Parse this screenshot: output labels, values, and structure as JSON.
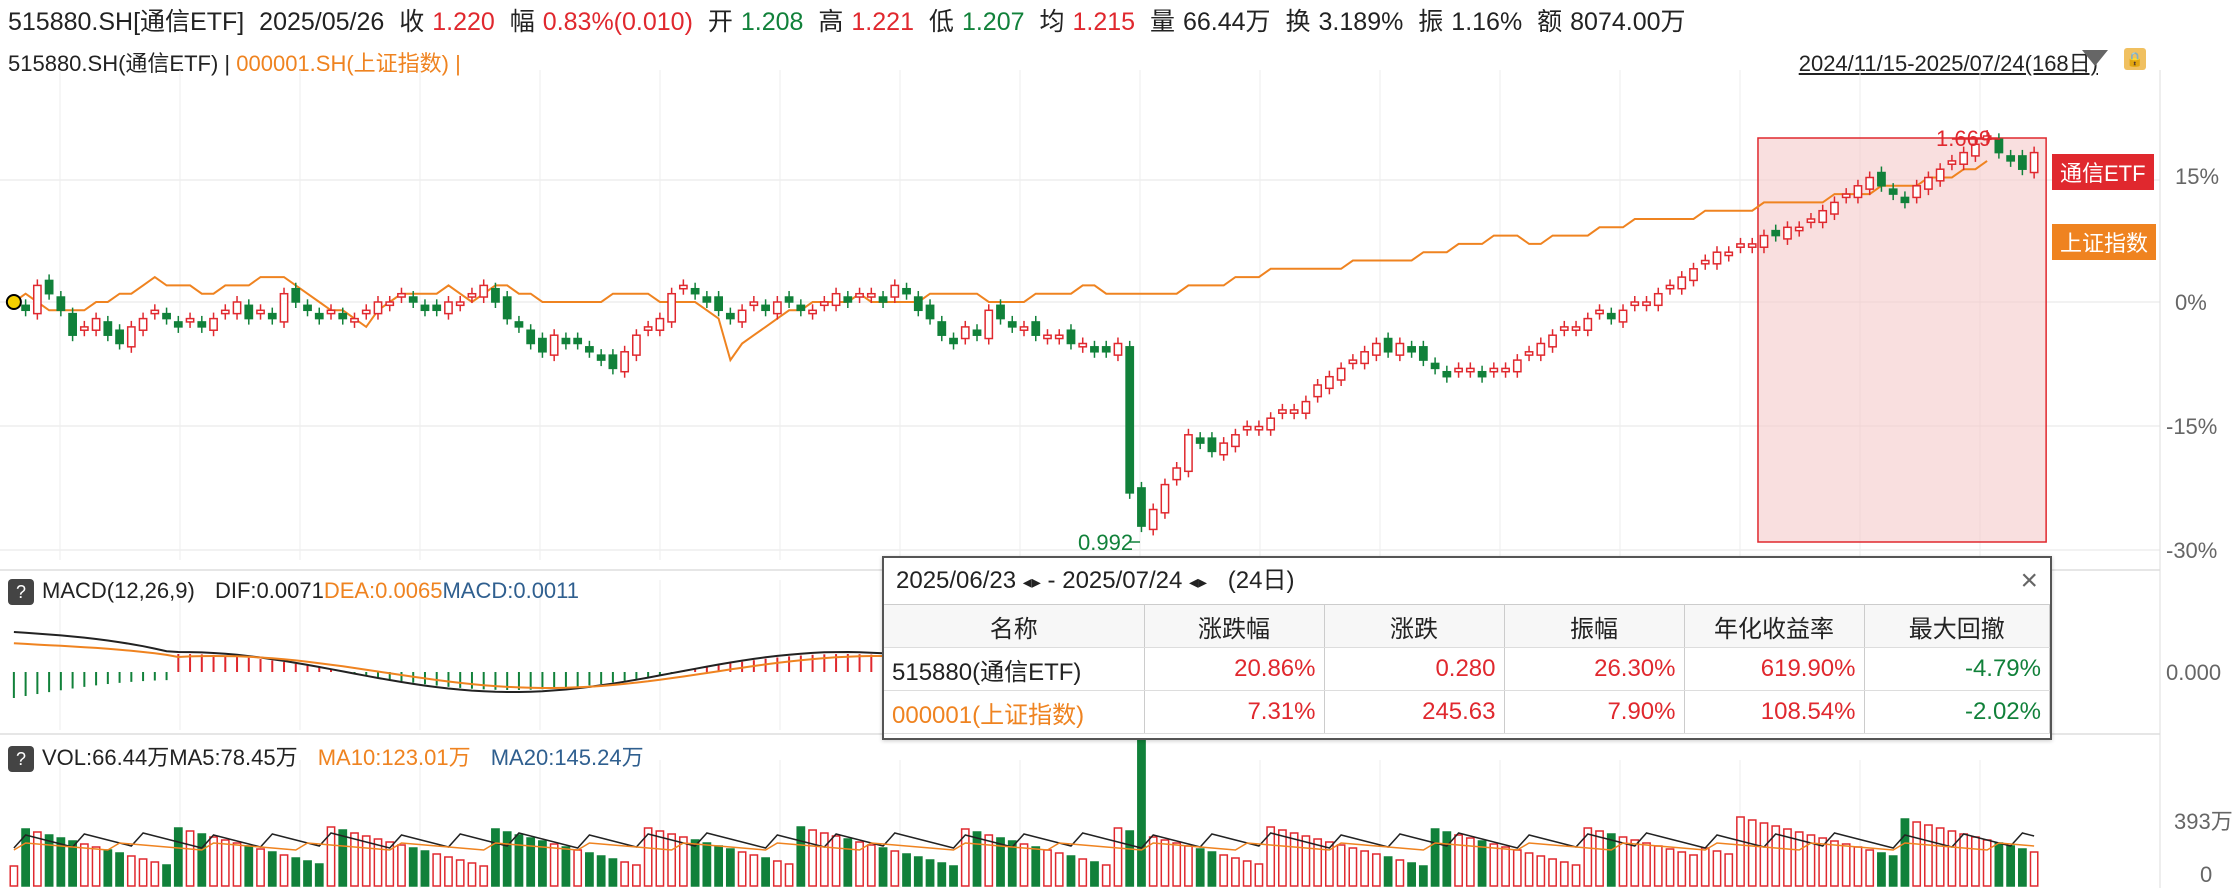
{
  "quote": {
    "symbol": "515880.SH[通信ETF]",
    "date": "2025/05/26",
    "close_label": "收",
    "close": "1.220",
    "chg_label": "幅",
    "chg": "0.83%(0.010)",
    "open_label": "开",
    "open": "1.208",
    "high_label": "高",
    "high": "1.221",
    "low_label": "低",
    "low": "1.207",
    "avg_label": "均",
    "avg": "1.215",
    "vol_label": "量",
    "vol": "66.44万",
    "turn_label": "换",
    "turn": "3.189%",
    "amp_label": "振",
    "amp": "1.16%",
    "amt_label": "额",
    "amt": "8074.00万"
  },
  "legend": {
    "main": "515880.SH(通信ETF)",
    "sep": " | ",
    "compare": "000001.SH(上证指数)",
    "sep2": " |"
  },
  "range_label": "2024/11/15-2025/07/24(168日)",
  "main_axis": [
    "15%",
    "0%",
    "-15%",
    "-30%"
  ],
  "tags": {
    "etf": "通信ETF",
    "index": "上证指数"
  },
  "annotations": {
    "high": "1.669",
    "low": "0.992"
  },
  "macd": {
    "title": "MACD(12,26,9)",
    "dif": "DIF:0.0071",
    "dea": "DEA:0.0065",
    "macd": "MACD:0.0011",
    "axis": "0.000"
  },
  "vol": {
    "title": "VOL:66.44万",
    "ma5": "MA5:78.45万",
    "ma10": "MA10:123.01万",
    "ma20": "MA20:145.24万",
    "axis_top": "393万",
    "axis_zero": "0"
  },
  "compare_panel": {
    "start": "2025/06/23",
    "dash": "-",
    "end": "2025/07/24",
    "days": "(24日)",
    "headers": [
      "名称",
      "涨跌幅",
      "涨跌",
      "振幅",
      "年化收益率",
      "最大回撤"
    ],
    "rows": [
      {
        "name": "515880(通信ETF)",
        "cells": [
          "20.86%",
          "0.280",
          "26.30%",
          "619.90%",
          "-4.79%"
        ]
      },
      {
        "name": "000001(上证指数)",
        "cells": [
          "7.31%",
          "245.63",
          "7.90%",
          "108.54%",
          "-2.02%"
        ]
      }
    ]
  },
  "colors": {
    "up": "#e0282e",
    "down": "#11813a",
    "index_line": "#ef8320",
    "highlight": "#f4c4c4"
  },
  "chart_data": {
    "type": "line",
    "x_range": [
      "2024/11/15",
      "2025/07/24"
    ],
    "ylabel": "",
    "ylim_pct": [
      -33,
      22
    ],
    "series": [
      {
        "name": "515880.SH(通信ETF)",
        "kind": "candlestick",
        "unit": "%",
        "values": [
          0,
          -1,
          2,
          1,
          -1,
          -4,
          -3,
          -2,
          -4,
          -5,
          -3,
          -2,
          -1,
          -2,
          -3,
          -2,
          -3,
          -2,
          -1,
          0,
          -2,
          -1,
          -2,
          1,
          0,
          -1,
          -2,
          -1,
          -2,
          -2,
          -1,
          0,
          0,
          1,
          0,
          -1,
          -1,
          0,
          0,
          1,
          2,
          0,
          -2,
          -3,
          -5,
          -6,
          -4,
          -5,
          -5,
          -6,
          -7,
          -8,
          -6,
          -4,
          -3,
          -2,
          1,
          2,
          1,
          0,
          -1,
          -2,
          -1,
          0,
          -1,
          0,
          0,
          -1,
          -1,
          0,
          1,
          0,
          1,
          1,
          0,
          2,
          1,
          -1,
          -2,
          -4,
          -5,
          -3,
          -4,
          -1,
          -2,
          -3,
          -3,
          -4,
          -4,
          -4,
          -5,
          -5,
          -6,
          -6,
          -5,
          -23,
          -27,
          -25,
          -22,
          -20,
          -16,
          -17,
          -18,
          -17,
          -16,
          -15,
          -15,
          -14,
          -13,
          -13,
          -12,
          -10,
          -9,
          -8,
          -7,
          -6,
          -5,
          -6,
          -5,
          -6,
          -7,
          -8,
          -9,
          -8,
          -8,
          -9,
          -8,
          -8,
          -7,
          -6,
          -5,
          -4,
          -3,
          -3,
          -2,
          -1,
          -2,
          -1,
          0,
          0,
          1,
          2,
          3,
          4,
          5,
          6,
          6,
          7,
          7,
          8,
          8,
          9,
          9,
          10,
          11,
          12,
          13,
          14,
          15,
          14,
          13,
          12,
          14,
          15,
          16,
          17,
          18,
          19,
          20,
          18,
          17,
          16,
          18
        ]
      },
      {
        "name": "000001.SH(上证指数)",
        "unit": "%",
        "values": [
          0,
          1,
          0,
          -1,
          -1,
          -1,
          -1,
          0,
          0,
          1,
          1,
          2,
          3,
          2,
          2,
          2,
          1,
          1,
          2,
          2,
          2,
          3,
          3,
          3,
          2,
          1,
          0,
          -1,
          -1,
          -2,
          -3,
          -1,
          0,
          1,
          1,
          1,
          1,
          2,
          1,
          0,
          1,
          2,
          2,
          1,
          1,
          0,
          0,
          0,
          0,
          0,
          0,
          1,
          1,
          1,
          1,
          0,
          0,
          0,
          0,
          -1,
          -2,
          -7,
          -5,
          -4,
          -3,
          -2,
          -1,
          -1,
          0,
          0,
          0,
          0,
          1,
          0,
          0,
          0,
          0,
          0,
          1,
          1,
          1,
          1,
          1,
          0,
          0,
          0,
          0,
          1,
          1,
          1,
          1,
          2,
          2,
          1,
          1,
          1,
          1,
          1,
          1,
          1,
          2,
          2,
          2,
          2,
          3,
          3,
          3,
          4,
          4,
          4,
          4,
          4,
          4,
          4,
          5,
          5,
          5,
          5,
          5,
          5,
          6,
          6,
          6,
          7,
          7,
          7,
          8,
          8,
          8,
          7,
          7,
          8,
          8,
          8,
          8,
          9,
          9,
          9,
          10,
          10,
          10,
          10,
          10,
          10,
          11,
          11,
          11,
          11,
          11,
          12,
          12,
          12,
          12,
          12,
          12,
          13,
          13,
          13,
          13,
          14,
          14,
          14,
          14,
          15,
          15,
          15,
          16,
          16,
          17
        ]
      }
    ],
    "highlight_range": [
      "2025/06/23",
      "2025/07/24"
    ],
    "annotations": [
      {
        "label": "1.669",
        "kind": "high"
      },
      {
        "label": "0.992",
        "kind": "low"
      }
    ]
  }
}
